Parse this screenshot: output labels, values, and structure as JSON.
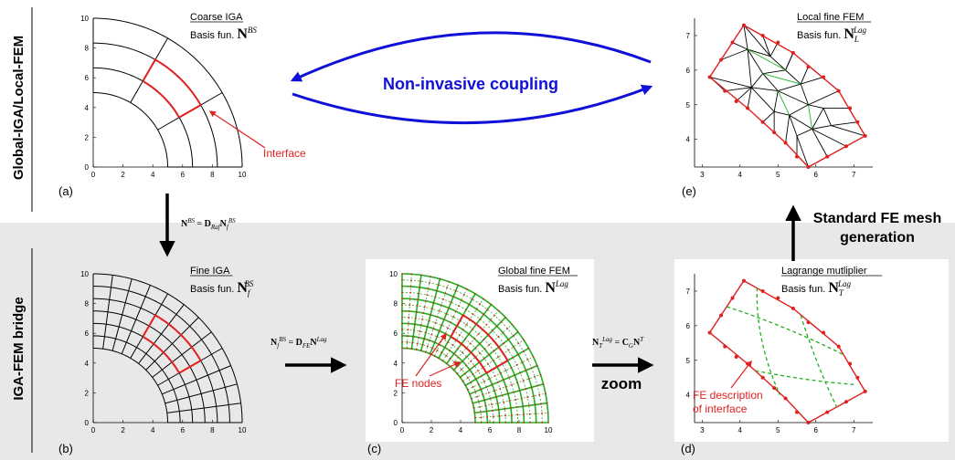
{
  "rows": {
    "top_label": "Global-IGA/Local-FEM",
    "bottom_label": "IGA-FEM bridge"
  },
  "panels": {
    "a": {
      "label": "(a)",
      "title": "Coarse IGA",
      "basis_prefix": "Basis fun.",
      "basis_symbol": "N",
      "basis_sup": "BS",
      "basis_sub": "",
      "annotation": "Interface",
      "x_ticks": [
        "0",
        "2",
        "4",
        "6",
        "8",
        "10"
      ],
      "y_ticks": [
        "0",
        "2",
        "4",
        "6",
        "8",
        "10"
      ]
    },
    "b": {
      "label": "(b)",
      "title": "Fine IGA",
      "basis_prefix": "Basis fun.",
      "basis_symbol": "N",
      "basis_sup": "BS",
      "basis_sub": "f",
      "x_ticks": [
        "0",
        "2",
        "4",
        "6",
        "8",
        "10"
      ],
      "y_ticks": [
        "0",
        "2",
        "4",
        "6",
        "8",
        "10"
      ]
    },
    "c": {
      "label": "(c)",
      "title": "Global fine FEM",
      "basis_prefix": "Basis fun.",
      "basis_symbol": "N",
      "basis_sup": "Lag",
      "basis_sub": "",
      "annotation": "FE nodes",
      "x_ticks": [
        "0",
        "2",
        "4",
        "6",
        "8",
        "10"
      ],
      "y_ticks": [
        "0",
        "2",
        "4",
        "6",
        "8",
        "10"
      ]
    },
    "d": {
      "label": "(d)",
      "title": "Lagrange mutliplier",
      "basis_prefix": "Basis fun.",
      "basis_symbol": "N",
      "basis_sup": "Lag",
      "basis_sub": "T",
      "annotation_line1": "FE description",
      "annotation_line2": "of interface",
      "x_ticks": [
        "3",
        "4",
        "5",
        "6",
        "7"
      ],
      "y_ticks": [
        "4",
        "5",
        "6",
        "7"
      ]
    },
    "e": {
      "label": "(e)",
      "title": "Local fine FEM",
      "basis_prefix": "Basis fun.",
      "basis_symbol": "N",
      "basis_sup": "Lag",
      "basis_sub": "L",
      "x_ticks": [
        "3",
        "4",
        "5",
        "6",
        "7"
      ],
      "y_ticks": [
        "4",
        "5",
        "6",
        "7"
      ]
    }
  },
  "arrows": {
    "coupling": "Non-invasive coupling",
    "mesh_gen_line1": "Standard FE mesh",
    "mesh_gen_line2": "generation",
    "zoom": "zoom",
    "eq_a_b": "N^BS = D_Raf N_f^BS",
    "eq_b_c": "N_f^BS = D_FE N^Lag",
    "eq_c_d": "N_T^Lag = C_G N^T"
  },
  "colors": {
    "blue": "#1010d8",
    "red": "#e02020",
    "green": "#20b020",
    "band": "#e8e8e8"
  }
}
